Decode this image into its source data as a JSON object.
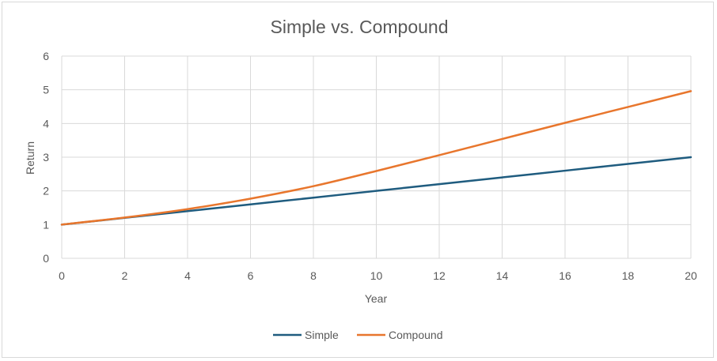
{
  "chart_data": {
    "type": "line",
    "title": "Simple vs. Compound",
    "xlabel": "Year",
    "ylabel": "Return",
    "xlim": [
      0,
      20
    ],
    "ylim": [
      0,
      6
    ],
    "xticks": [
      "0",
      "2",
      "4",
      "6",
      "8",
      "10",
      "12",
      "14",
      "16",
      "18",
      "20"
    ],
    "yticks": [
      "0",
      "1",
      "2",
      "3",
      "4",
      "5",
      "6"
    ],
    "grid": true,
    "legend_position": "bottom",
    "x": [
      0,
      2,
      4,
      6,
      8,
      10,
      12,
      14,
      16,
      18,
      20
    ],
    "series": [
      {
        "name": "Simple",
        "color": "#1f5c7f",
        "values": [
          1.0,
          1.2,
          1.4,
          1.6,
          1.8,
          2.0,
          2.2,
          2.4,
          2.6,
          2.8,
          3.0
        ]
      },
      {
        "name": "Compound",
        "color": "#e8762d",
        "values": [
          1.0,
          1.21,
          1.46,
          1.77,
          2.14,
          2.59,
          3.06,
          3.54,
          4.02,
          4.49,
          4.96
        ]
      }
    ]
  }
}
